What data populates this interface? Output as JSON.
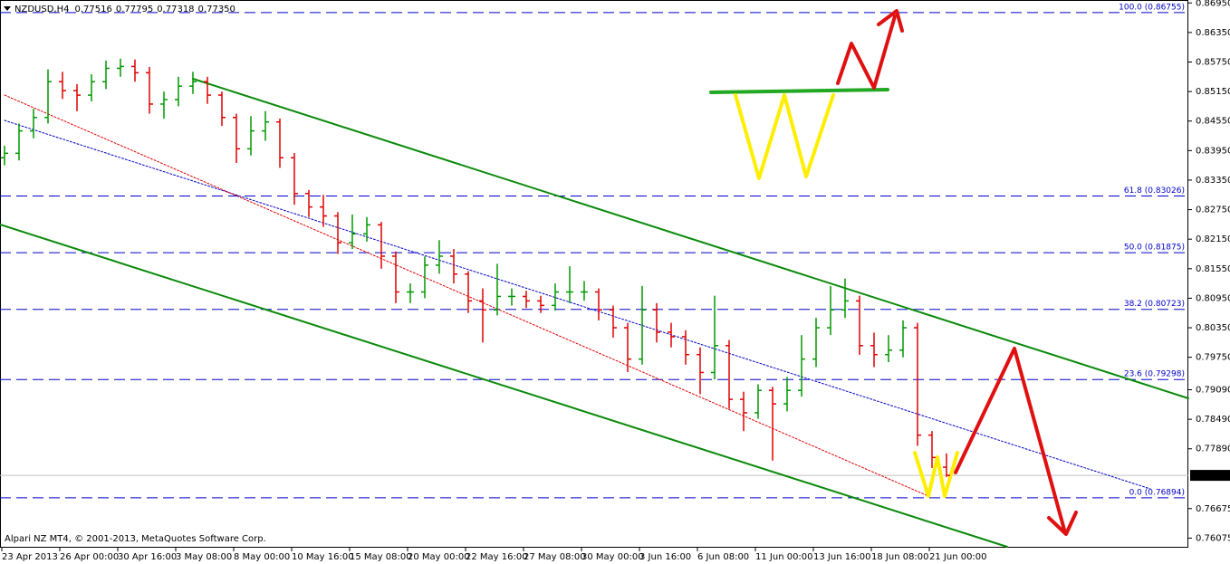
{
  "chart_data": {
    "type": "ohlc",
    "title": "NZDUSD,H4",
    "header_values": [
      "0.77516",
      "0.77795",
      "0.77318",
      "0.77350"
    ],
    "footer": "Alpari NZ MT4, © 2001-2013, MetaQuotes Software Corp.",
    "categories": [
      "23 Apr 2013",
      null,
      null,
      null,
      "26 Apr 00:00",
      null,
      null,
      null,
      "30 Apr 16:00",
      null,
      null,
      null,
      "3 May 08:00",
      null,
      null,
      null,
      "8 May 00:00",
      null,
      null,
      null,
      "10 May 16:00",
      null,
      null,
      null,
      "15 May 08:00",
      null,
      null,
      null,
      "20 May 00:00",
      null,
      null,
      null,
      "22 May 16:00",
      null,
      null,
      null,
      "27 May 08:00",
      null,
      null,
      null,
      "30 May 00:00",
      null,
      null,
      null,
      "3 Jun 16:00",
      null,
      null,
      null,
      "6 Jun 08:00",
      null,
      null,
      null,
      "11 Jun 00:00",
      null,
      null,
      null,
      "13 Jun 16:00",
      null,
      null,
      null,
      "18 Jun 08:00",
      null,
      null,
      null,
      "21 Jun 00:00",
      null
    ],
    "open": [
      0.83804,
      0.83895,
      0.8435,
      0.84622,
      0.8535,
      0.85168,
      0.85077,
      0.8535,
      0.85622,
      0.85659,
      0.85532,
      0.84895,
      0.84986,
      0.85259,
      0.8535,
      0.85077,
      0.84622,
      0.83986,
      0.8435,
      0.84532,
      0.83804,
      0.83077,
      0.82804,
      0.82622,
      0.82077,
      0.82259,
      0.82441,
      0.81804,
      0.81077,
      0.81077,
      0.81622,
      0.81804,
      0.81441,
      0.80895,
      0.80713,
      0.80986,
      0.80986,
      0.80895,
      0.80804,
      0.81077,
      0.81077,
      0.81077,
      0.80713,
      0.8035,
      0.79713,
      0.80713,
      0.80259,
      0.80168,
      0.79804,
      0.79441,
      0.79986,
      0.78895,
      0.78622,
      0.79077,
      0.78804,
      0.79077,
      0.79713,
      0.8035,
      0.80713,
      0.80895,
      0.79986,
      0.79804,
      0.79895,
      0.8035,
      0.78168,
      0.77516
    ],
    "high": [
      0.8405,
      0.845,
      0.848,
      0.856,
      0.8555,
      0.853,
      0.855,
      0.8578,
      0.8582,
      0.858,
      0.8565,
      0.8515,
      0.8545,
      0.8555,
      0.8545,
      0.8515,
      0.847,
      0.8465,
      0.8475,
      0.846,
      0.839,
      0.8315,
      0.8305,
      0.827,
      0.8265,
      0.826,
      0.825,
      0.819,
      0.8125,
      0.818,
      0.8213,
      0.8195,
      0.815,
      0.8115,
      0.8165,
      0.8115,
      0.811,
      0.81,
      0.8125,
      0.816,
      0.813,
      0.8115,
      0.808,
      0.8045,
      0.812,
      0.8085,
      0.8045,
      0.803,
      0.7995,
      0.81,
      0.801,
      0.7905,
      0.792,
      0.7915,
      0.7935,
      0.802,
      0.8055,
      0.812,
      0.8135,
      0.81,
      0.8025,
      0.802,
      0.805,
      0.8045,
      0.7825,
      0.77795
    ],
    "low": [
      0.8365,
      0.8375,
      0.842,
      0.845,
      0.85,
      0.8475,
      0.8495,
      0.852,
      0.8545,
      0.8535,
      0.847,
      0.846,
      0.8485,
      0.851,
      0.849,
      0.8445,
      0.837,
      0.8385,
      0.8415,
      0.836,
      0.8285,
      0.826,
      0.824,
      0.8185,
      0.8195,
      0.821,
      0.8155,
      0.8085,
      0.8085,
      0.8095,
      0.8145,
      0.8125,
      0.8065,
      0.8005,
      0.806,
      0.808,
      0.8075,
      0.8065,
      0.807,
      0.8085,
      0.809,
      0.805,
      0.8015,
      0.7945,
      0.796,
      0.8005,
      0.7995,
      0.796,
      0.79,
      0.793,
      0.787,
      0.7825,
      0.785,
      0.7765,
      0.7865,
      0.7895,
      0.7955,
      0.802,
      0.8055,
      0.798,
      0.7955,
      0.7965,
      0.7975,
      0.7795,
      0.775,
      0.77318
    ],
    "close": [
      0.83895,
      0.8435,
      0.84622,
      0.8535,
      0.85168,
      0.85077,
      0.8535,
      0.85622,
      0.85659,
      0.85532,
      0.84895,
      0.84986,
      0.85259,
      0.8535,
      0.85077,
      0.84622,
      0.83986,
      0.8435,
      0.84532,
      0.83804,
      0.83077,
      0.82804,
      0.82622,
      0.82077,
      0.82259,
      0.82441,
      0.81804,
      0.81077,
      0.81077,
      0.81622,
      0.81804,
      0.81441,
      0.80895,
      0.80713,
      0.80986,
      0.80986,
      0.80895,
      0.80804,
      0.81077,
      0.81077,
      0.81077,
      0.80713,
      0.8035,
      0.79713,
      0.80713,
      0.80259,
      0.80168,
      0.79804,
      0.79441,
      0.79986,
      0.78895,
      0.78622,
      0.79077,
      0.78804,
      0.79077,
      0.79713,
      0.8035,
      0.80713,
      0.80895,
      0.79986,
      0.79804,
      0.79895,
      0.8035,
      0.78168,
      0.77713,
      0.7735
    ],
    "up_color": "#009900",
    "down_color": "#e00000",
    "ylim": [
      0.7588,
      0.8701
    ],
    "yticks": [
      {
        "value": 0.8695,
        "label": "0.86950"
      },
      {
        "value": 0.8635,
        "label": "0.86350"
      },
      {
        "value": 0.8575,
        "label": "0.85750"
      },
      {
        "value": 0.8515,
        "label": "0.85150"
      },
      {
        "value": 0.8455,
        "label": "0.84550"
      },
      {
        "value": 0.8395,
        "label": "0.83950"
      },
      {
        "value": 0.8335,
        "label": "0.83350"
      },
      {
        "value": 0.8275,
        "label": "0.82750"
      },
      {
        "value": 0.8215,
        "label": "0.82150"
      },
      {
        "value": 0.8155,
        "label": "0.81550"
      },
      {
        "value": 0.8095,
        "label": "0.80950"
      },
      {
        "value": 0.8035,
        "label": "0.80350"
      },
      {
        "value": 0.7975,
        "label": "0.79750"
      },
      {
        "value": 0.7909,
        "label": "0.79090"
      },
      {
        "value": 0.7849,
        "label": "0.78490"
      },
      {
        "value": 0.7789,
        "label": "0.77890"
      },
      0.76675,
      0.76075
    ],
    "current_price": {
      "value": 0.7735,
      "label": "0.77350"
    },
    "level_color": "#0000c8",
    "levels": [
      {
        "value": 0.86755,
        "label": "100.0 (0.86755)"
      },
      {
        "value": 0.83026,
        "label": "61.8 (0.83026)"
      },
      {
        "value": 0.81875,
        "label": "50.0 (0.81875)"
      },
      {
        "value": 0.80723,
        "label": "38.2 (0.80723)"
      },
      {
        "value": 0.79298,
        "label": "23.6 (0.79298)"
      },
      {
        "value": 0.76894,
        "label": "0.0 (0.76894)"
      }
    ]
  }
}
